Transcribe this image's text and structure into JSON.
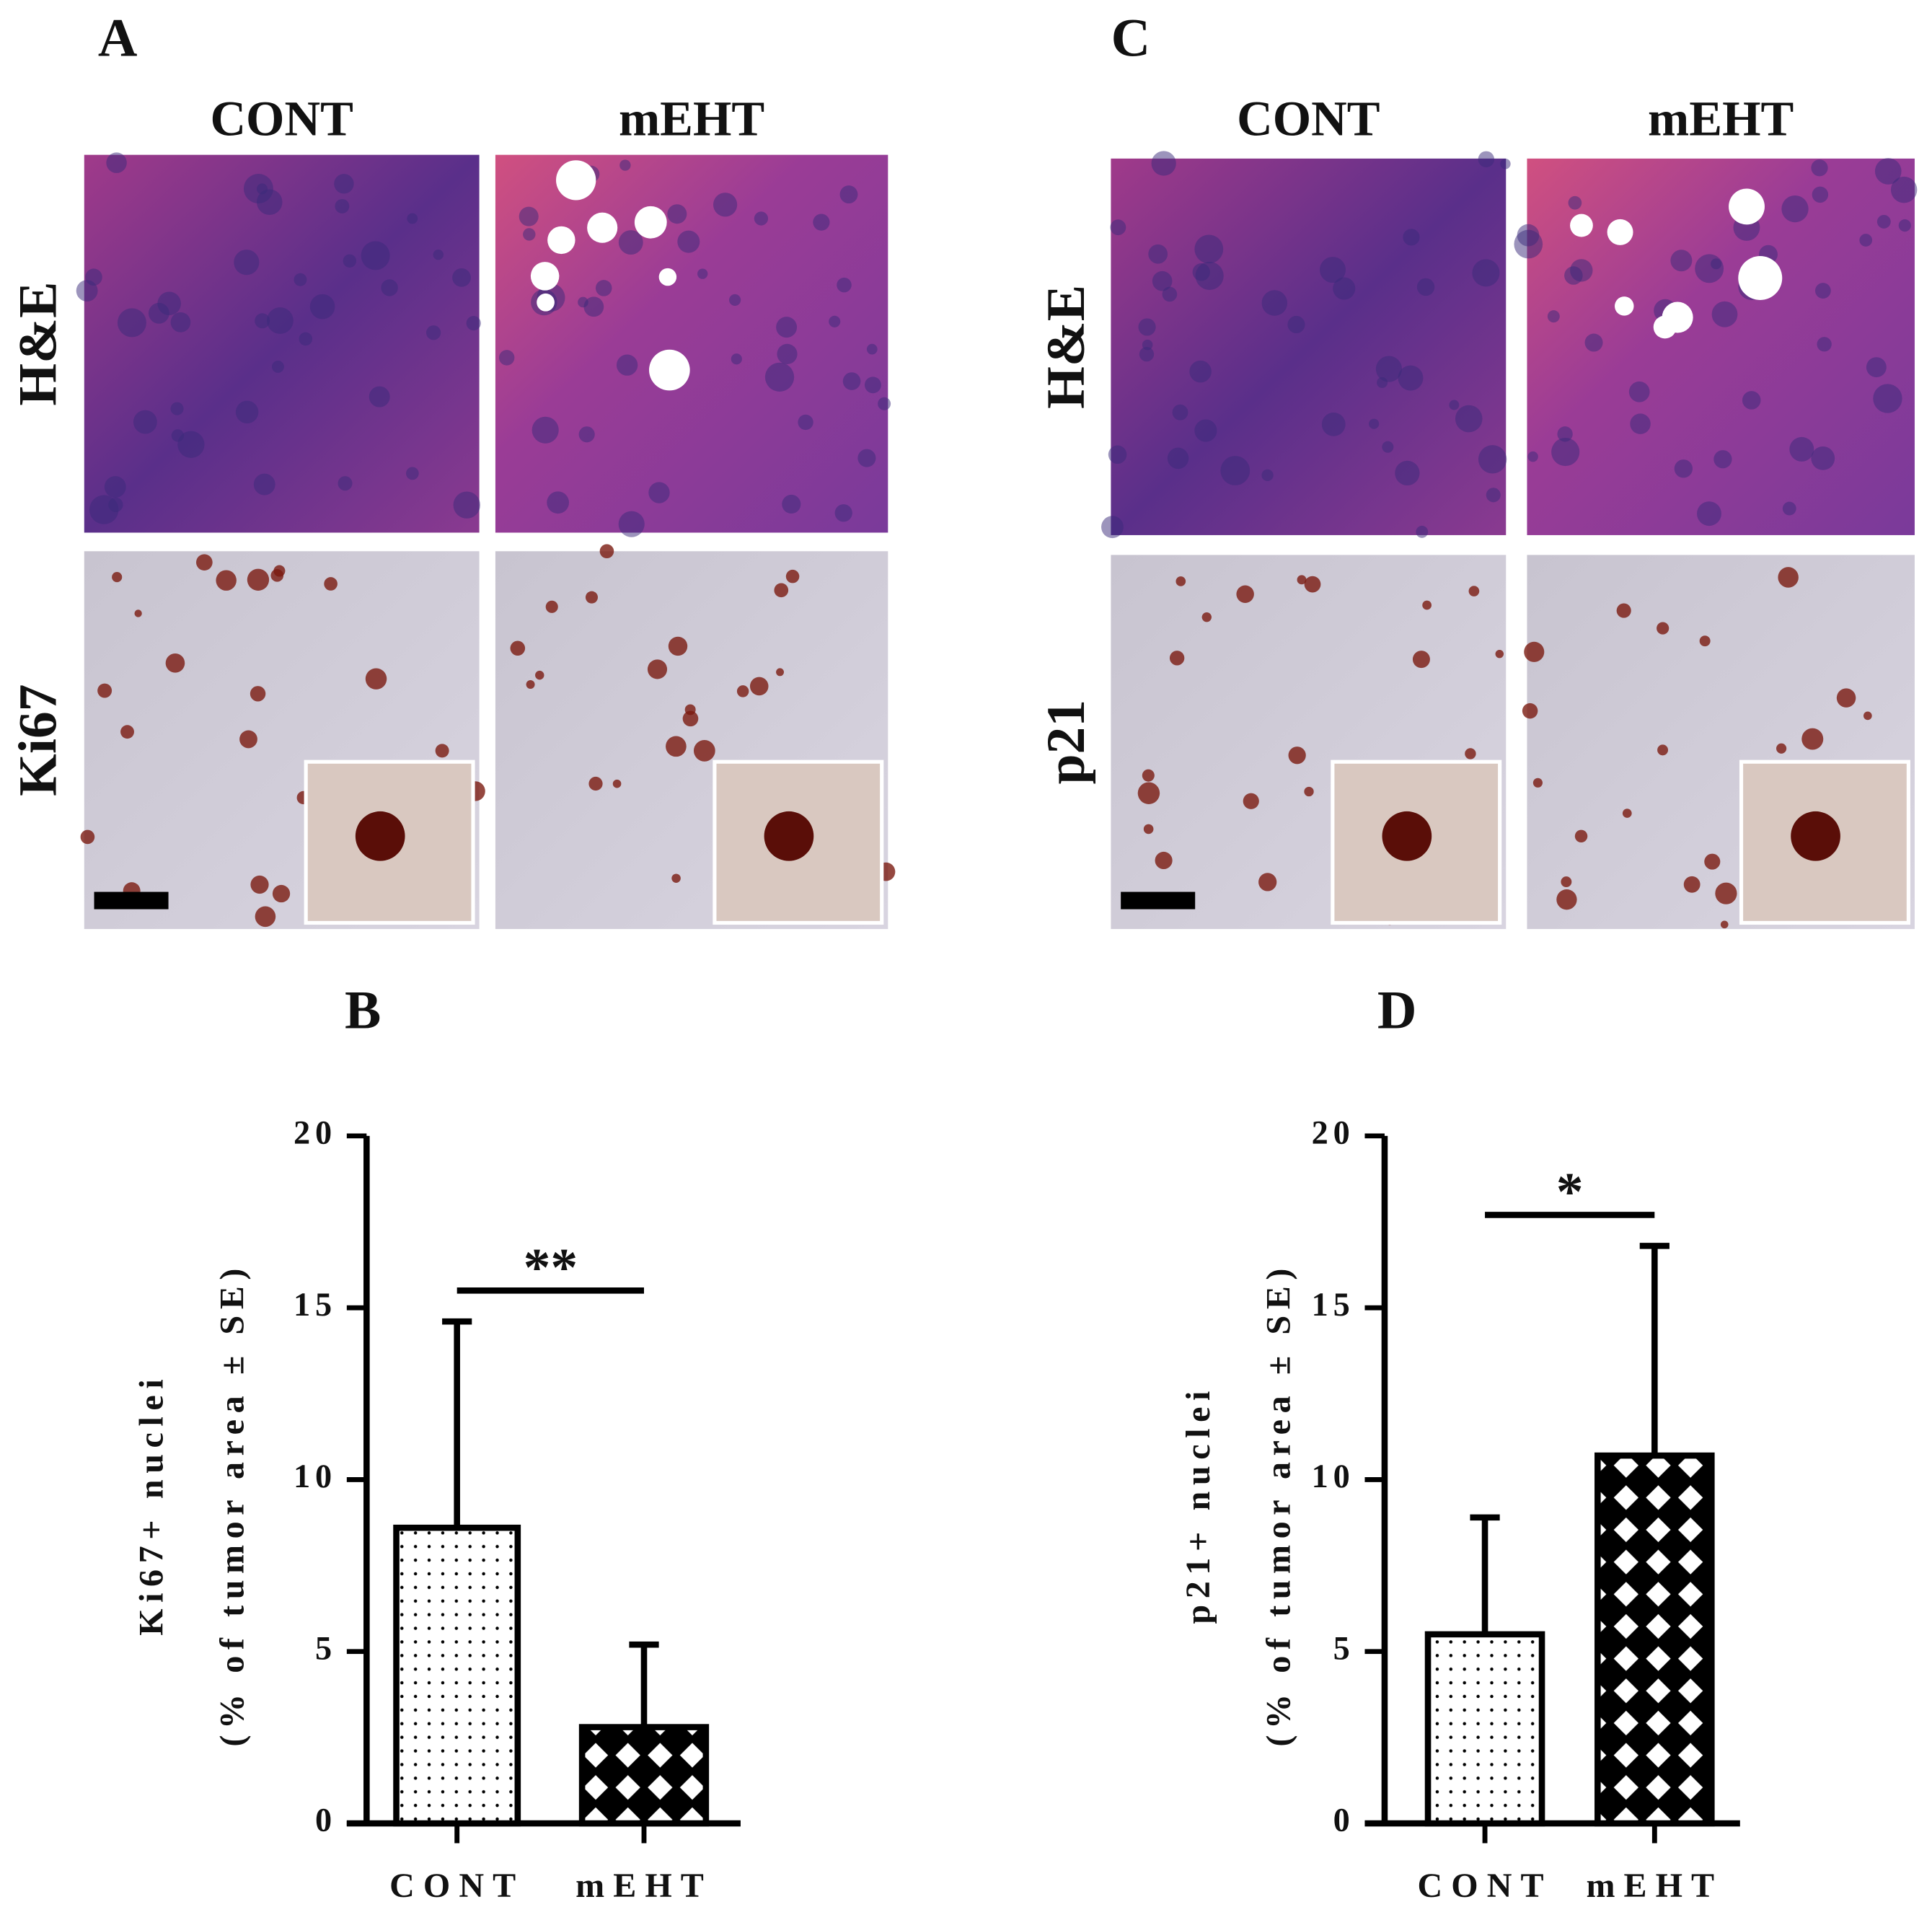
{
  "panels": [
    {
      "label": "A",
      "columns": [
        "CONT",
        "mEHT"
      ],
      "rows": [
        "H&E",
        "Ki67"
      ]
    },
    {
      "label": "C",
      "columns": [
        "CONT",
        "mEHT"
      ],
      "rows": [
        "H&E",
        "p21"
      ]
    }
  ],
  "chart_data": [
    {
      "type": "bar",
      "panel": "B",
      "categories": [
        "CONT",
        "mEHT"
      ],
      "values": [
        8.6,
        2.8
      ],
      "errors": [
        6.0,
        2.4
      ],
      "patterns": [
        "dots",
        "diamonds"
      ],
      "color": "#000000",
      "ylabel": [
        "Ki67+ nuclei",
        "(% of tumor area ± SE)"
      ],
      "significance": "**",
      "ylim": [
        0,
        20
      ],
      "yticks": [
        0,
        5,
        10,
        15,
        20
      ]
    },
    {
      "type": "bar",
      "panel": "D",
      "categories": [
        "CONT",
        "mEHT"
      ],
      "values": [
        5.5,
        10.7
      ],
      "errors": [
        3.4,
        6.1
      ],
      "patterns": [
        "dots",
        "diamonds"
      ],
      "color": "#000000",
      "ylabel": [
        "p21+ nuclei",
        "(% of tumor area ± SE)"
      ],
      "significance": "*",
      "ylim": [
        0,
        20
      ],
      "yticks": [
        0,
        5,
        10,
        15,
        20
      ]
    }
  ]
}
